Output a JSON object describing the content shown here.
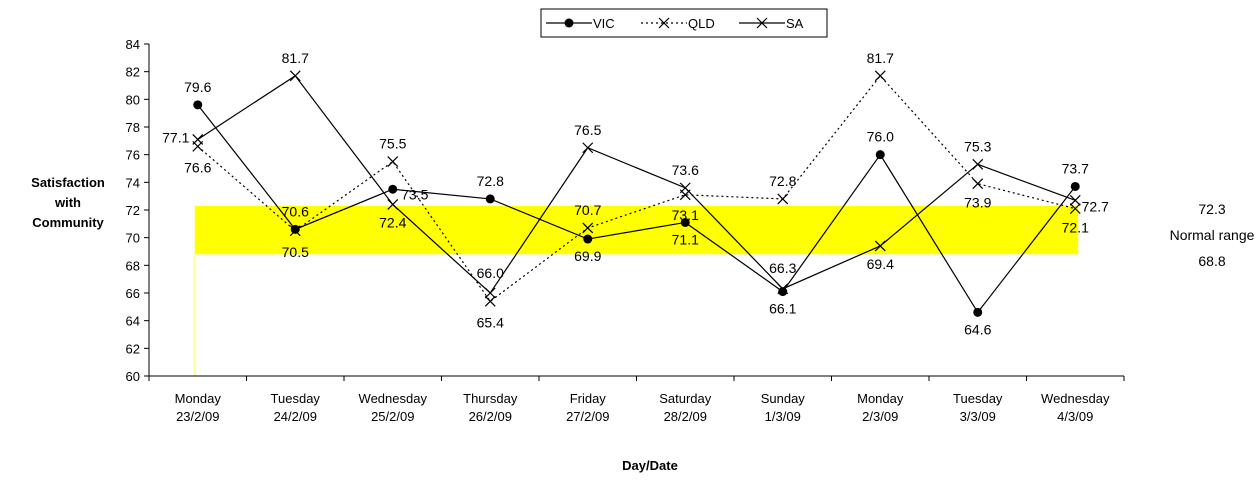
{
  "chart_data": {
    "type": "line",
    "ylabel_lines": [
      "Satisfaction",
      "with",
      "Community"
    ],
    "xlabel": "Day/Date",
    "ylim": [
      60,
      84
    ],
    "yticks": [
      60,
      62,
      64,
      66,
      68,
      70,
      72,
      74,
      76,
      78,
      80,
      82,
      84
    ],
    "categories": [
      [
        "Monday",
        "23/2/09"
      ],
      [
        "Tuesday",
        "24/2/09"
      ],
      [
        "Wednesday",
        "25/2/09"
      ],
      [
        "Thursday",
        "26/2/09"
      ],
      [
        "Friday",
        "27/2/09"
      ],
      [
        "Saturday",
        "28/2/09"
      ],
      [
        "Sunday",
        "1/3/09"
      ],
      [
        "Monday",
        "2/3/09"
      ],
      [
        "Tuesday",
        "3/3/09"
      ],
      [
        "Wednesday",
        "4/3/09"
      ]
    ],
    "series": [
      {
        "name": "VIC",
        "marker": "dot",
        "dash": "solid",
        "values": [
          79.6,
          70.6,
          73.5,
          72.8,
          69.9,
          71.1,
          66.1,
          76.0,
          64.6,
          73.7
        ]
      },
      {
        "name": "QLD",
        "marker": "x",
        "dash": "dotted",
        "values": [
          76.6,
          70.5,
          75.5,
          65.4,
          70.7,
          73.1,
          72.8,
          81.7,
          73.9,
          72.1
        ]
      },
      {
        "name": "SA",
        "marker": "x",
        "dash": "solid",
        "values": [
          77.1,
          81.7,
          72.4,
          66.0,
          76.5,
          73.6,
          66.3,
          69.4,
          75.3,
          72.7
        ]
      }
    ],
    "normal_range": {
      "low": 68.8,
      "high": 72.3,
      "label": "Normal range",
      "color": "#ffff00"
    },
    "legend_position": "top-center",
    "grid": false
  }
}
